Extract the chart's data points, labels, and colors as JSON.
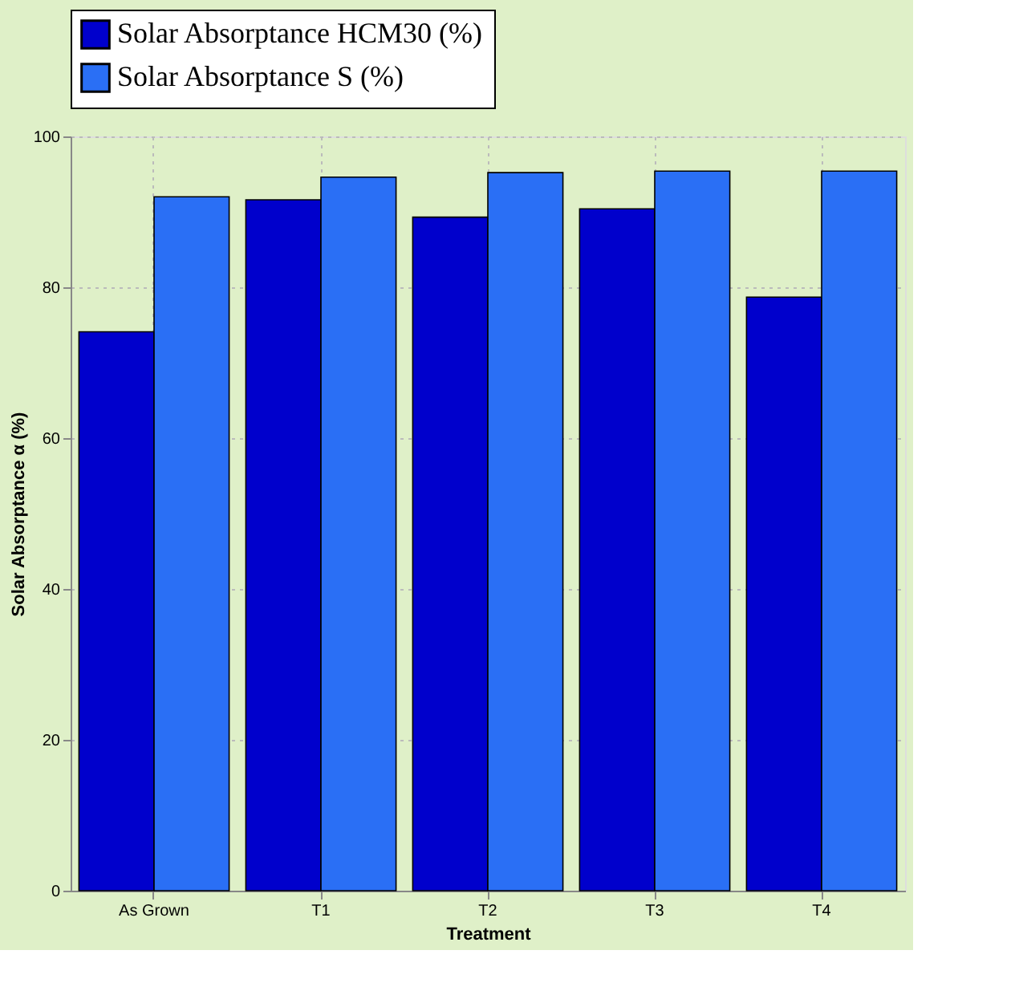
{
  "chart_data": {
    "type": "bar",
    "xlabel": "Treatment",
    "ylabel": "Solar Absorptance α (%)",
    "categories": [
      "As Grown",
      "T1",
      "T2",
      "T3",
      "T4"
    ],
    "series": [
      {
        "name": "Solar Absorptance HCM30 (%)",
        "color": "#0000cc",
        "values": [
          74.1,
          91.6,
          89.3,
          90.4,
          78.7
        ]
      },
      {
        "name": "Solar Absorptance S (%)",
        "color": "#2a6ff5",
        "values": [
          92.0,
          94.6,
          95.2,
          95.4,
          95.4
        ]
      }
    ],
    "ylim": [
      0,
      100
    ],
    "yticks": [
      0,
      20,
      40,
      60,
      80,
      100
    ],
    "grid": true,
    "legend": "top"
  }
}
